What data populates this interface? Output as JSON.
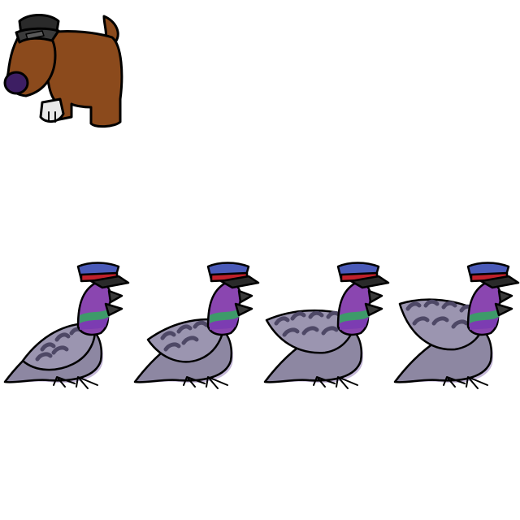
{
  "scene": {
    "background": "#ffffff",
    "dog": {
      "icon": "dog-police-cap-icon",
      "fur_color": "#8b4a1c",
      "cap_color": "#2a2a2a",
      "nose_color": "#3d1e63",
      "paw_color": "#e8e8e8",
      "outline_color": "#000000"
    },
    "pigeons": [
      {
        "icon": "pigeon-police-cap-icon",
        "pose": "wings-down"
      },
      {
        "icon": "pigeon-police-cap-icon",
        "pose": "wings-down"
      },
      {
        "icon": "pigeon-police-cap-icon",
        "pose": "wings-raised"
      },
      {
        "icon": "pigeon-police-cap-icon",
        "pose": "wings-raised"
      }
    ],
    "pigeon_colors": {
      "body": "#8d87a2",
      "wing": "#9b95b0",
      "bars": "#4e4866",
      "head": "#8a46b0",
      "neck_green": "#3e9a6a",
      "neck_purple": "#7c3cb2",
      "beak": "#3a3a3a",
      "cap": "#4a5ab8",
      "cap_band": "#c0202a",
      "shadow": "#c4b8d8"
    }
  }
}
